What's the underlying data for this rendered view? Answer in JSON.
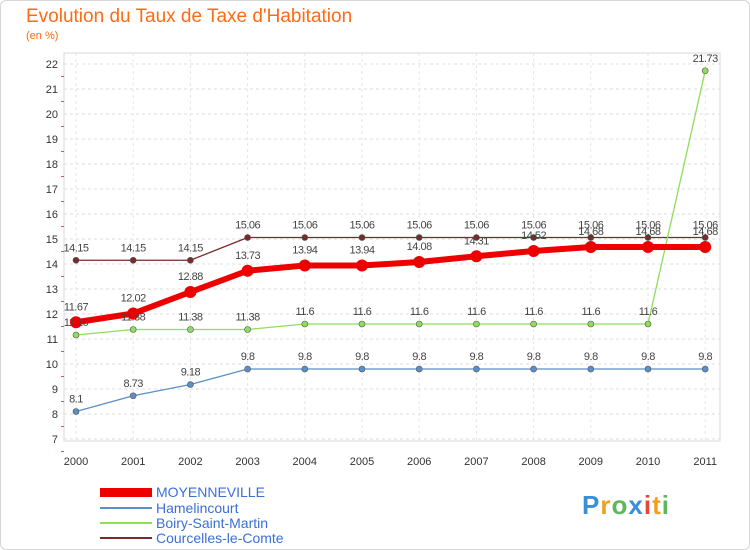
{
  "title": "Evolution du Taux de Taxe d'Habitation",
  "subtitle": "(en %)",
  "chart_data": {
    "type": "line",
    "title": "Evolution du Taux de Taxe d'Habitation",
    "ylabel": "(en %)",
    "xlabel": "",
    "categories": [
      "2000",
      "2001",
      "2002",
      "2003",
      "2004",
      "2005",
      "2006",
      "2007",
      "2008",
      "2009",
      "2010",
      "2011"
    ],
    "ylim": [
      7,
      22
    ],
    "yticks": [
      7,
      8,
      9,
      10,
      11,
      12,
      13,
      14,
      15,
      16,
      17,
      18,
      19,
      20,
      21,
      22
    ],
    "grid": true,
    "series": [
      {
        "name": "MOYENNEVILLE",
        "color": "#ee0000",
        "values": [
          11.67,
          12.02,
          12.88,
          13.73,
          13.94,
          13.94,
          14.08,
          14.31,
          14.52,
          14.68,
          14.68,
          14.68
        ],
        "labels": [
          "11.67",
          "12.02",
          "12.88",
          "13.73",
          "13.94",
          "13.94",
          "14.08",
          "14.31",
          "14.52",
          "14.68",
          "14.68",
          "14.68"
        ]
      },
      {
        "name": "Hamelincourt",
        "color": "#5a8fc8",
        "values": [
          8.1,
          8.73,
          9.18,
          9.8,
          9.8,
          9.8,
          9.8,
          9.8,
          9.8,
          9.8,
          9.8,
          9.8
        ],
        "labels": [
          "8.1",
          "8.73",
          "9.18",
          "9.8",
          "9.8",
          "9.8",
          "9.8",
          "9.8",
          "9.8",
          "9.8",
          "9.8",
          "9.8"
        ]
      },
      {
        "name": "Boiry-Saint-Martin",
        "color": "#8ede5a",
        "values": [
          11.16,
          11.38,
          11.38,
          11.38,
          11.6,
          11.6,
          11.6,
          11.6,
          11.6,
          11.6,
          11.6,
          21.73
        ],
        "labels": [
          "11.16",
          "11.38",
          "11.38",
          "11.38",
          "11.6",
          "11.6",
          "11.6",
          "11.6",
          "11.6",
          "11.6",
          "11.6",
          "21.73"
        ]
      },
      {
        "name": "Courcelles-le-Comte",
        "color": "#7a2a2a",
        "values": [
          14.15,
          14.15,
          14.15,
          15.06,
          15.06,
          15.06,
          15.06,
          15.06,
          15.06,
          15.06,
          15.06,
          15.06
        ],
        "labels": [
          "14.15",
          "14.15",
          "14.15",
          "15.06",
          "15.06",
          "15.06",
          "15.06",
          "15.06",
          "15.06",
          "15.06",
          "15.06",
          "15.06"
        ]
      }
    ],
    "legend": [
      "MOYENNEVILLE",
      "Hamelincourt",
      "Boiry-Saint-Martin",
      "Courcelles-le-Comte"
    ],
    "legend_position": "bottom-left"
  },
  "legend": {
    "items": [
      {
        "label": "MOYENNEVILLE",
        "color": "#ee0000"
      },
      {
        "label": "Hamelincourt",
        "color": "#5a8fc8"
      },
      {
        "label": "Boiry-Saint-Martin",
        "color": "#8ede5a"
      },
      {
        "label": "Courcelles-le-Comte",
        "color": "#7a2a2a"
      }
    ]
  },
  "logo": {
    "letters": [
      "P",
      "r",
      "o",
      "x",
      "i",
      "t",
      "i"
    ],
    "colors": [
      "#3a8fd6",
      "#f0a020",
      "#5cb85c",
      "#3a8fd6",
      "#e0483a",
      "#f0a020",
      "#5cb85c"
    ]
  }
}
